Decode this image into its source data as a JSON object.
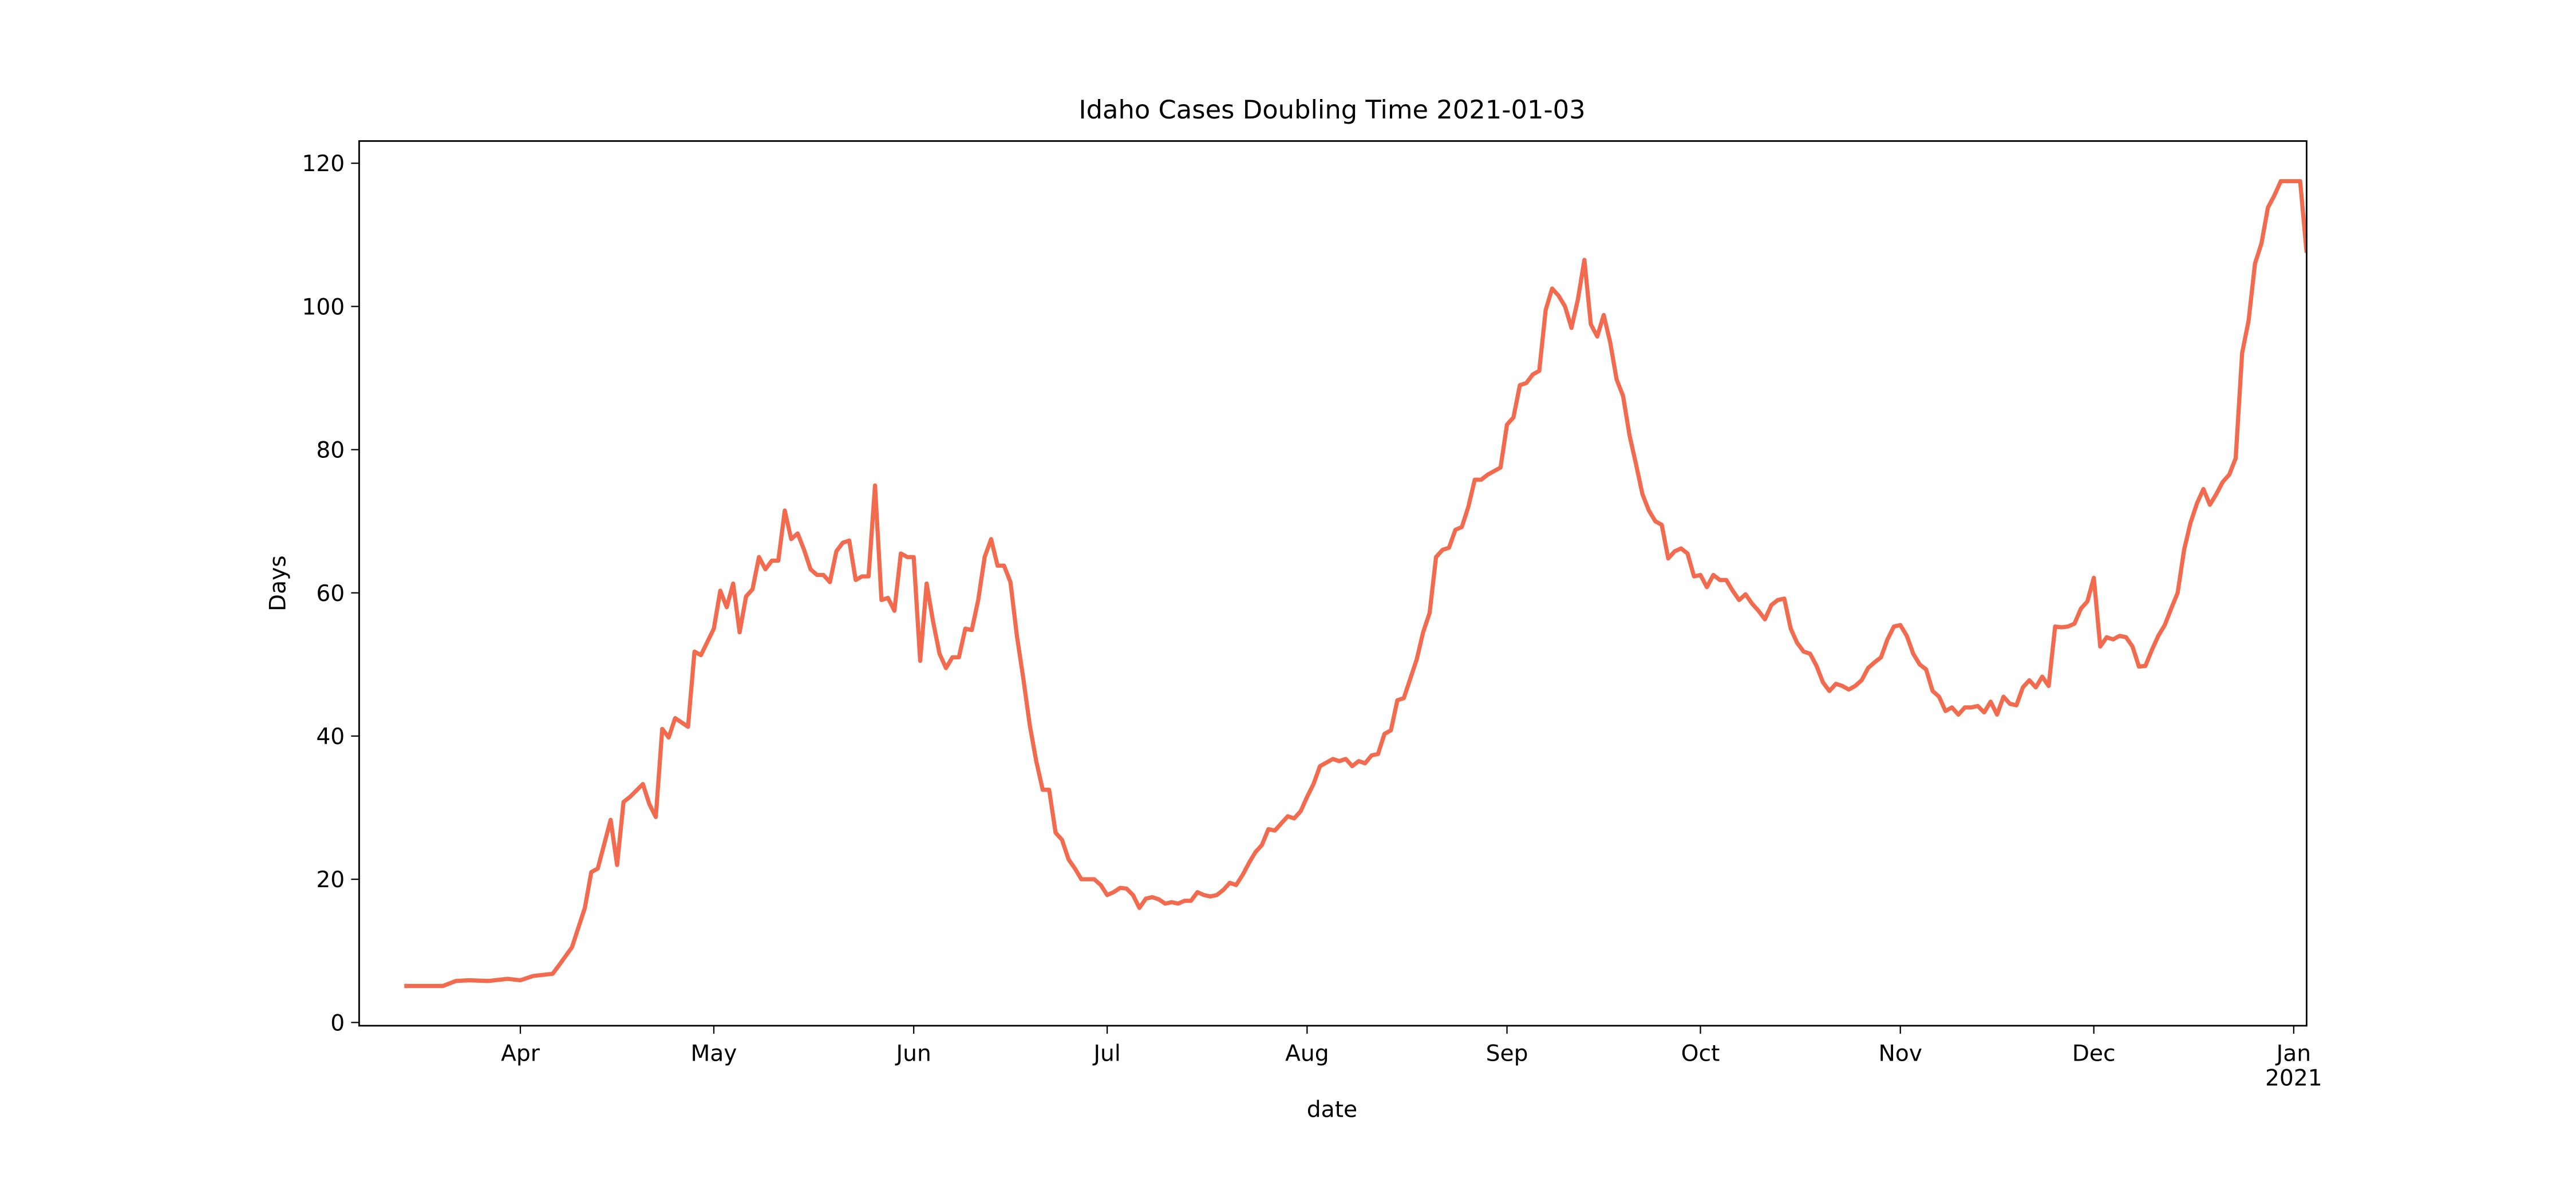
{
  "chart_data": {
    "type": "line",
    "title": "Idaho Cases Doubling Time 2021-01-03",
    "x_label": "date",
    "y_label": "Days",
    "color": "#f26b4f",
    "xlim": [
      "2020-03-07",
      "2021-01-03"
    ],
    "ylim": [
      -0.45,
      123.1
    ],
    "xticks": [
      {
        "value": "2020-04-01",
        "label": "Apr"
      },
      {
        "value": "2020-05-01",
        "label": "May"
      },
      {
        "value": "2020-06-01",
        "label": "Jun"
      },
      {
        "value": "2020-07-01",
        "label": "Jul"
      },
      {
        "value": "2020-08-01",
        "label": "Aug"
      },
      {
        "value": "2020-09-01",
        "label": "Sep"
      },
      {
        "value": "2020-10-01",
        "label": "Oct"
      },
      {
        "value": "2020-11-01",
        "label": "Nov"
      },
      {
        "value": "2020-12-01",
        "label": "Dec"
      },
      {
        "value": "2021-01-01",
        "label": "Jan\n2021"
      }
    ],
    "yticks": [
      0,
      20,
      40,
      60,
      80,
      100,
      120
    ],
    "x": [
      "2020-03-14",
      "2020-03-20",
      "2020-03-22",
      "2020-03-24",
      "2020-03-27",
      "2020-03-30",
      "2020-04-01",
      "2020-04-03",
      "2020-04-06",
      "2020-04-07",
      "2020-04-09",
      "2020-04-11",
      "2020-04-12",
      "2020-04-13",
      "2020-04-15",
      "2020-04-16",
      "2020-04-17",
      "2020-04-18",
      "2020-04-20",
      "2020-04-21",
      "2020-04-22",
      "2020-04-23",
      "2020-04-24",
      "2020-04-25",
      "2020-04-27",
      "2020-04-28",
      "2020-04-29",
      "2020-05-01",
      "2020-05-02",
      "2020-05-03",
      "2020-05-04",
      "2020-05-05",
      "2020-05-06",
      "2020-05-07",
      "2020-05-08",
      "2020-05-09",
      "2020-05-10",
      "2020-05-11",
      "2020-05-12",
      "2020-05-13",
      "2020-05-14",
      "2020-05-15",
      "2020-05-16",
      "2020-05-17",
      "2020-05-18",
      "2020-05-19",
      "2020-05-20",
      "2020-05-21",
      "2020-05-22",
      "2020-05-23",
      "2020-05-24",
      "2020-05-25",
      "2020-05-26",
      "2020-05-27",
      "2020-05-28",
      "2020-05-29",
      "2020-05-30",
      "2020-05-31",
      "2020-06-01",
      "2020-06-02",
      "2020-06-03",
      "2020-06-04",
      "2020-06-05",
      "2020-06-06",
      "2020-06-07",
      "2020-06-08",
      "2020-06-09",
      "2020-06-10",
      "2020-06-11",
      "2020-06-12",
      "2020-06-13",
      "2020-06-14",
      "2020-06-15",
      "2020-06-16",
      "2020-06-17",
      "2020-06-18",
      "2020-06-19",
      "2020-06-20",
      "2020-06-21",
      "2020-06-22",
      "2020-06-23",
      "2020-06-24",
      "2020-06-25",
      "2020-06-26",
      "2020-06-27",
      "2020-06-28",
      "2020-06-29",
      "2020-06-30",
      "2020-07-01",
      "2020-07-02",
      "2020-07-03",
      "2020-07-04",
      "2020-07-05",
      "2020-07-06",
      "2020-07-07",
      "2020-07-08",
      "2020-07-09",
      "2020-07-10",
      "2020-07-11",
      "2020-07-12",
      "2020-07-13",
      "2020-07-14",
      "2020-07-15",
      "2020-07-16",
      "2020-07-17",
      "2020-07-18",
      "2020-07-19",
      "2020-07-20",
      "2020-07-21",
      "2020-07-22",
      "2020-07-23",
      "2020-07-24",
      "2020-07-25",
      "2020-07-26",
      "2020-07-27",
      "2020-07-28",
      "2020-07-29",
      "2020-07-30",
      "2020-07-31",
      "2020-08-01",
      "2020-08-02",
      "2020-08-03",
      "2020-08-04",
      "2020-08-05",
      "2020-08-06",
      "2020-08-07",
      "2020-08-08",
      "2020-08-09",
      "2020-08-10",
      "2020-08-11",
      "2020-08-12",
      "2020-08-13",
      "2020-08-14",
      "2020-08-15",
      "2020-08-16",
      "2020-08-17",
      "2020-08-18",
      "2020-08-19",
      "2020-08-20",
      "2020-08-21",
      "2020-08-22",
      "2020-08-23",
      "2020-08-24",
      "2020-08-25",
      "2020-08-26",
      "2020-08-27",
      "2020-08-28",
      "2020-08-29",
      "2020-08-30",
      "2020-08-31",
      "2020-09-01",
      "2020-09-02",
      "2020-09-03",
      "2020-09-04",
      "2020-09-05",
      "2020-09-06",
      "2020-09-07",
      "2020-09-08",
      "2020-09-09",
      "2020-09-10",
      "2020-09-11",
      "2020-09-12",
      "2020-09-13",
      "2020-09-14",
      "2020-09-15",
      "2020-09-16",
      "2020-09-17",
      "2020-09-18",
      "2020-09-19",
      "2020-09-20",
      "2020-09-21",
      "2020-09-22",
      "2020-09-23",
      "2020-09-24",
      "2020-09-25",
      "2020-09-26",
      "2020-09-27",
      "2020-09-28",
      "2020-09-29",
      "2020-09-30",
      "2020-10-01",
      "2020-10-02",
      "2020-10-03",
      "2020-10-04",
      "2020-10-05",
      "2020-10-06",
      "2020-10-07",
      "2020-10-08",
      "2020-10-09",
      "2020-10-10",
      "2020-10-11",
      "2020-10-12",
      "2020-10-13",
      "2020-10-14",
      "2020-10-15",
      "2020-10-16",
      "2020-10-17",
      "2020-10-18",
      "2020-10-19",
      "2020-10-20",
      "2020-10-21",
      "2020-10-22",
      "2020-10-23",
      "2020-10-24",
      "2020-10-25",
      "2020-10-26",
      "2020-10-27",
      "2020-10-28",
      "2020-10-29",
      "2020-10-30",
      "2020-10-31",
      "2020-11-01",
      "2020-11-02",
      "2020-11-03",
      "2020-11-04",
      "2020-11-05",
      "2020-11-06",
      "2020-11-07",
      "2020-11-08",
      "2020-11-09",
      "2020-11-10",
      "2020-11-11",
      "2020-11-12",
      "2020-11-13",
      "2020-11-14",
      "2020-11-15",
      "2020-11-16",
      "2020-11-17",
      "2020-11-18",
      "2020-11-19",
      "2020-11-20",
      "2020-11-21",
      "2020-11-22",
      "2020-11-23",
      "2020-11-24",
      "2020-11-25",
      "2020-11-26",
      "2020-11-27",
      "2020-11-28",
      "2020-11-29",
      "2020-11-30",
      "2020-12-01",
      "2020-12-02",
      "2020-12-03",
      "2020-12-04",
      "2020-12-05",
      "2020-12-06",
      "2020-12-07",
      "2020-12-08",
      "2020-12-09",
      "2020-12-10",
      "2020-12-11",
      "2020-12-12",
      "2020-12-13",
      "2020-12-14",
      "2020-12-15",
      "2020-12-16",
      "2020-12-17",
      "2020-12-18",
      "2020-12-19",
      "2020-12-20",
      "2020-12-21",
      "2020-12-22",
      "2020-12-23",
      "2020-12-24",
      "2020-12-25",
      "2020-12-26",
      "2020-12-27",
      "2020-12-28",
      "2020-12-29",
      "2020-12-30",
      "2020-12-31",
      "2021-01-01",
      "2021-01-02",
      "2021-01-03"
    ],
    "values": [
      5.1,
      5.1,
      5.8,
      5.9,
      5.8,
      6.1,
      5.9,
      6.5,
      6.8,
      8,
      10.5,
      16,
      21,
      21.5,
      28.3,
      22,
      30.8,
      31.5,
      33.3,
      30.5,
      28.7,
      41,
      39.8,
      42.5,
      41.3,
      51.8,
      51.3,
      55,
      60.3,
      58,
      61.3,
      54.5,
      59.5,
      60.5,
      65,
      63.3,
      64.5,
      64.5,
      71.5,
      67.5,
      68.3,
      66,
      63.3,
      62.5,
      62.5,
      61.5,
      65.8,
      67,
      67.3,
      61.8,
      62.3,
      62.3,
      75,
      59,
      59.3,
      57.5,
      65.5,
      65,
      65,
      50.5,
      61.3,
      56,
      51.5,
      49.5,
      51,
      51,
      55,
      54.8,
      59,
      65,
      67.5,
      63.8,
      63.8,
      61.5,
      54,
      48,
      41.5,
      36.5,
      32.5,
      32.5,
      26.5,
      25.5,
      22.8,
      21.5,
      20,
      20,
      20,
      19.2,
      17.8,
      18.2,
      18.8,
      18.7,
      17.8,
      16,
      17.3,
      17.5,
      17.2,
      16.6,
      16.8,
      16.6,
      17,
      17,
      18.2,
      17.8,
      17.6,
      17.8,
      18.5,
      19.5,
      19.2,
      20.6,
      22.3,
      23.8,
      24.8,
      27,
      26.8,
      27.8,
      28.8,
      28.5,
      29.5,
      31.5,
      33.3,
      35.8,
      36.3,
      36.8,
      36.5,
      36.8,
      35.8,
      36.5,
      36.2,
      37.3,
      37.5,
      40.3,
      40.8,
      45,
      45.3,
      48,
      50.7,
      54.5,
      57.2,
      65,
      66,
      66.3,
      68.8,
      69.2,
      72,
      75.8,
      75.8,
      76.5,
      77,
      77.5,
      83.5,
      84.5,
      89,
      89.3,
      90.5,
      91,
      99.5,
      102.5,
      101.5,
      100,
      97,
      101,
      106.5,
      97.5,
      95.8,
      98.8,
      95,
      89.8,
      87.5,
      82,
      78,
      73.8,
      71.5,
      70,
      69.5,
      64.8,
      65.8,
      66.2,
      65.5,
      62.3,
      62.5,
      60.8,
      62.5,
      61.8,
      61.8,
      60.3,
      59,
      59.8,
      58.5,
      57.5,
      56.3,
      58.3,
      59,
      59.2,
      55,
      53,
      51.8,
      51.5,
      49.8,
      47.5,
      46.3,
      47.3,
      47,
      46.5,
      47,
      47.8,
      49.5,
      50.3,
      51,
      53.5,
      55.3,
      55.5,
      54,
      51.5,
      50,
      49.3,
      46.3,
      45.5,
      43.5,
      44,
      43,
      44,
      44,
      44.2,
      43.3,
      44.8,
      43,
      45.5,
      44.5,
      44.3,
      46.8,
      47.8,
      46.8,
      48.3,
      47,
      55.3,
      55.2,
      55.3,
      55.7,
      57.8,
      58.8,
      62.1,
      52.5,
      53.8,
      53.5,
      54,
      53.8,
      52.5,
      49.7,
      49.8,
      52,
      54,
      55.5,
      57.8,
      60,
      66,
      69.8,
      72.5,
      74.5,
      72.3,
      73.8,
      75.5,
      76.5,
      78.8,
      93.5,
      98,
      106,
      108.8,
      113.8,
      115.5,
      117.5,
      117.5,
      117.5,
      117.5,
      107.5
    ]
  }
}
